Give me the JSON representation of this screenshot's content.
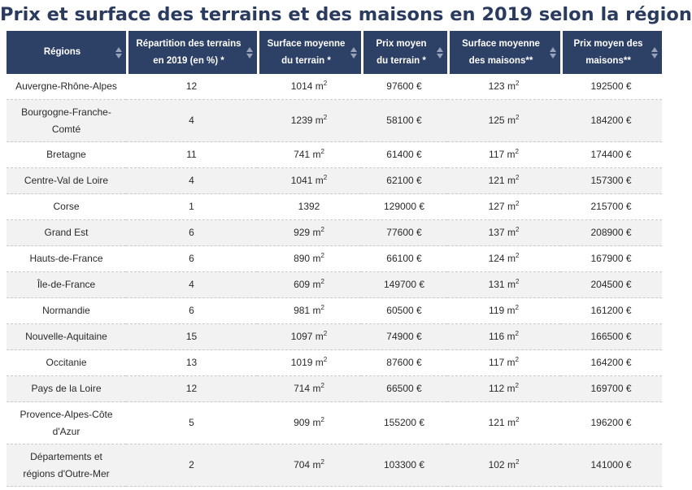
{
  "title": "Prix et surface des terrains et des maisons en 2019 selon la région",
  "unit_m2": "m",
  "unit_sq": "2",
  "columns": [
    {
      "line1": "Régions",
      "line2": ""
    },
    {
      "line1": "Répartition des terrains",
      "line2": "en 2019 (en %) *"
    },
    {
      "line1": "Surface moyenne",
      "line2": "du terrain *"
    },
    {
      "line1": "Prix moyen",
      "line2": "du terrain *"
    },
    {
      "line1": "Surface moyenne",
      "line2": "des maisons**"
    },
    {
      "line1": "Prix moyen des",
      "line2": "maisons**"
    }
  ],
  "rows": [
    {
      "region": "Auvergne-Rhône-Alpes",
      "region2": "",
      "repartition": "12",
      "surface_terrain": "1014",
      "prix_terrain": "97600 €",
      "surface_maison": "123",
      "prix_maison": "192500 €"
    },
    {
      "region": "Bourgogne-Franche-",
      "region2": "Comté",
      "repartition": "4",
      "surface_terrain": "1239",
      "prix_terrain": "58100 €",
      "surface_maison": "125",
      "prix_maison": "184200 €"
    },
    {
      "region": "Bretagne",
      "region2": "",
      "repartition": "11",
      "surface_terrain": "741",
      "prix_terrain": "61400 €",
      "surface_maison": "117",
      "prix_maison": "174400 €"
    },
    {
      "region": "Centre-Val de Loire",
      "region2": "",
      "repartition": "4",
      "surface_terrain": "1041",
      "prix_terrain": "62100 €",
      "surface_maison": "121",
      "prix_maison": "157300 €"
    },
    {
      "region": "Corse",
      "region2": "",
      "repartition": "1",
      "surface_terrain": "1392",
      "prix_terrain": "129000 €",
      "surface_maison": "127",
      "prix_maison": "215700 €"
    },
    {
      "region": "Grand Est",
      "region2": "",
      "repartition": "6",
      "surface_terrain": "929",
      "prix_terrain": "77600 €",
      "surface_maison": "137",
      "prix_maison": "208900 €"
    },
    {
      "region": "Hauts-de-France",
      "region2": "",
      "repartition": "6",
      "surface_terrain": "890",
      "prix_terrain": "66100 €",
      "surface_maison": "124",
      "prix_maison": "167900 €"
    },
    {
      "region": "Île-de-France",
      "region2": "",
      "repartition": "4",
      "surface_terrain": "609",
      "prix_terrain": "149700 €",
      "surface_maison": "131",
      "prix_maison": "204500 €"
    },
    {
      "region": "Normandie",
      "region2": "",
      "repartition": "6",
      "surface_terrain": "981",
      "prix_terrain": "60500 €",
      "surface_maison": "119",
      "prix_maison": "161200 €"
    },
    {
      "region": "Nouvelle-Aquitaine",
      "region2": "",
      "repartition": "15",
      "surface_terrain": "1097",
      "prix_terrain": "74900 €",
      "surface_maison": "116",
      "prix_maison": "166500 €"
    },
    {
      "region": "Occitanie",
      "region2": "",
      "repartition": "13",
      "surface_terrain": "1019",
      "prix_terrain": "87600 €",
      "surface_maison": "117",
      "prix_maison": "164200 €"
    },
    {
      "region": "Pays de la Loire",
      "region2": "",
      "repartition": "12",
      "surface_terrain": "714",
      "prix_terrain": "66500 €",
      "surface_maison": "112",
      "prix_maison": "169700 €"
    },
    {
      "region": "Provence-Alpes-Côte",
      "region2": "d'Azur",
      "repartition": "5",
      "surface_terrain": "909",
      "prix_terrain": "155200 €",
      "surface_maison": "121",
      "prix_maison": "196200 €"
    },
    {
      "region": "Départements et",
      "region2": "régions d'Outre-Mer",
      "repartition": "2",
      "surface_terrain": "704",
      "prix_terrain": "103300 €",
      "surface_maison": "102",
      "prix_maison": "141000 €"
    }
  ],
  "colors": {
    "title": "#2b3b5e",
    "header_bg": "#2d4166",
    "header_text": "#ffffff",
    "stripe": "#f2f2f2"
  }
}
